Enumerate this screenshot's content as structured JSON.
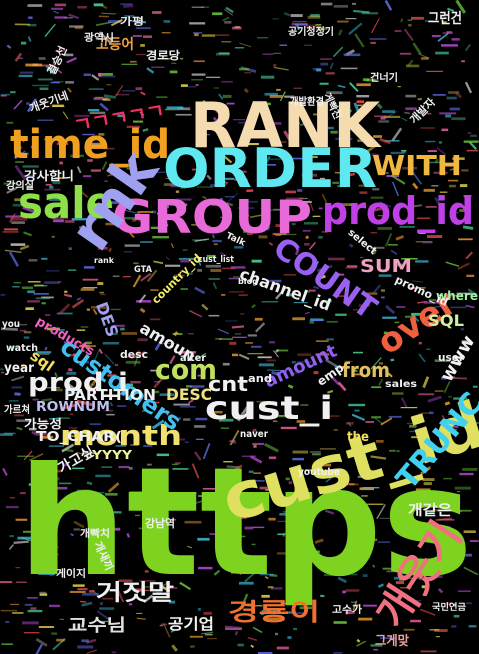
{
  "cloud": {
    "background": "#000000",
    "words": [
      {
        "text": "https",
        "color": "#7ed321"
      },
      {
        "text": "RANK",
        "color": "#f5dcb0"
      },
      {
        "text": "ORDER",
        "color": "#5ee8f0"
      },
      {
        "text": "GROUP",
        "color": "#e86ad8"
      },
      {
        "text": "time_id",
        "color": "#f0a020"
      },
      {
        "text": "sale",
        "color": "#8ee04a"
      },
      {
        "text": "prod_id",
        "color": "#c040e8"
      },
      {
        "text": "rnk",
        "color": "#a0a0f0"
      },
      {
        "text": "cust_id",
        "color": "#e0e060"
      },
      {
        "text": "COUNT",
        "color": "#9a60f0"
      },
      {
        "text": "WITH",
        "color": "#f0b840"
      },
      {
        "text": "cust_i",
        "color": "#f0f0f0"
      },
      {
        "text": "month",
        "color": "#f0e070"
      },
      {
        "text": "TRUNC",
        "color": "#40d0f0"
      },
      {
        "text": "customers",
        "color": "#40c0f0"
      },
      {
        "text": "over",
        "color": "#f06040"
      },
      {
        "text": "prod_i",
        "color": "#f0f0f0"
      },
      {
        "text": "com",
        "color": "#c0e060"
      },
      {
        "text": "개웃기",
        "color": "#f07080"
      },
      {
        "text": "경룡이",
        "color": "#f07030"
      },
      {
        "text": "거짓말",
        "color": "#f0f0f0"
      },
      {
        "text": "SUM",
        "color": "#f0a0c0"
      },
      {
        "text": "channel_id",
        "color": "#f0f0f0"
      },
      {
        "text": "SQL",
        "color": "#d0f0a0"
      },
      {
        "text": "cnt",
        "color": "#f0f0f0"
      },
      {
        "text": "amount",
        "color": "#9060f0"
      },
      {
        "text": "from",
        "color": "#e0c060"
      },
      {
        "text": "DESC",
        "color": "#f0e080"
      },
      {
        "text": "PARTITION",
        "color": "#f0f0f0"
      },
      {
        "text": "ROWNUM",
        "color": "#c0c0f0"
      },
      {
        "text": "TO_CHAR(",
        "color": "#f0f0f0"
      },
      {
        "text": "YYYY",
        "color": "#f0f0a0"
      },
      {
        "text": "DES",
        "color": "#a0a0f0"
      },
      {
        "text": "amoun",
        "color": "#f0f0f0"
      },
      {
        "text": "교수님",
        "color": "#e0e0e0"
      },
      {
        "text": "공기업",
        "color": "#f0f0f0"
      },
      {
        "text": "개같은",
        "color": "#f0f0f0"
      },
      {
        "text": "www",
        "color": "#f0f0f0"
      },
      {
        "text": "sql",
        "color": "#f0e060"
      },
      {
        "text": "the",
        "color": "#f0e060"
      },
      {
        "text": "and",
        "color": "#f0f0f0"
      },
      {
        "text": "desc",
        "color": "#f0f0f0"
      },
      {
        "text": "year",
        "color": "#f0f0f0"
      },
      {
        "text": "products",
        "color": "#f060c0"
      },
      {
        "text": "ㄱㄱㄱㄱㄱ",
        "color": "#f03060"
      },
      {
        "text": "그게맞",
        "color": "#f0a0a0"
      },
      {
        "text": "강사합니",
        "color": "#f0f0f0"
      },
      {
        "text": "고등어",
        "color": "#f0a040"
      },
      {
        "text": "강남역",
        "color": "#f0f0f0"
      },
      {
        "text": "where",
        "color": "#a0f0a0"
      },
      {
        "text": "promo_id",
        "color": "#f0f0f0"
      },
      {
        "text": "emp",
        "color": "#f0f0f0"
      },
      {
        "text": "country_id",
        "color": "#f0f060"
      },
      {
        "text": "select",
        "color": "#f0f0f0"
      },
      {
        "text": "youtube",
        "color": "#f0f0f0"
      },
      {
        "text": "sales",
        "color": "#f0f0f0"
      },
      {
        "text": "user",
        "color": "#f0f0f0"
      },
      {
        "text": "naver",
        "color": "#f0f0f0"
      },
      {
        "text": "Talk",
        "color": "#f0f0f0"
      },
      {
        "text": "cust_list",
        "color": "#f0f0f0"
      },
      {
        "text": "blog",
        "color": "#f0f0f0"
      },
      {
        "text": "alter",
        "color": "#f0f0f0"
      },
      {
        "text": "watch",
        "color": "#f0f0f0"
      },
      {
        "text": "you",
        "color": "#f0f0f0"
      },
      {
        "text": "GTA",
        "color": "#f0f0f0"
      },
      {
        "text": "rank",
        "color": "#f0f0f0"
      },
      {
        "text": "개웃기네",
        "color": "#f0f0f0"
      },
      {
        "text": "결승선",
        "color": "#f0f0f0"
      },
      {
        "text": "공기청정기",
        "color": "#f0f0f0"
      },
      {
        "text": "그런건",
        "color": "#f0f0f0"
      },
      {
        "text": "광역시",
        "color": "#f0f0f0"
      },
      {
        "text": "경로당",
        "color": "#f0f0f0"
      },
      {
        "text": "개발환경",
        "color": "#f0f0f0"
      },
      {
        "text": "게빡친",
        "color": "#f0f0f0"
      },
      {
        "text": "개발자",
        "color": "#f0f0f0"
      },
      {
        "text": "가능성",
        "color": "#f0f0f0"
      },
      {
        "text": "가르쳐",
        "color": "#f0f0f0"
      },
      {
        "text": "가고싶",
        "color": "#f0f0f0"
      },
      {
        "text": "가평",
        "color": "#f0f0f0"
      },
      {
        "text": "개빡치",
        "color": "#f0f0f0"
      },
      {
        "text": "개새끼",
        "color": "#f0f0f0"
      },
      {
        "text": "게이지",
        "color": "#f0f0f0"
      },
      {
        "text": "고수가",
        "color": "#f0f0f0"
      },
      {
        "text": "국민연금",
        "color": "#f0f0f0"
      },
      {
        "text": "강의실",
        "color": "#f0f0f0"
      },
      {
        "text": "건너기",
        "color": "#f0f0f0"
      }
    ]
  }
}
